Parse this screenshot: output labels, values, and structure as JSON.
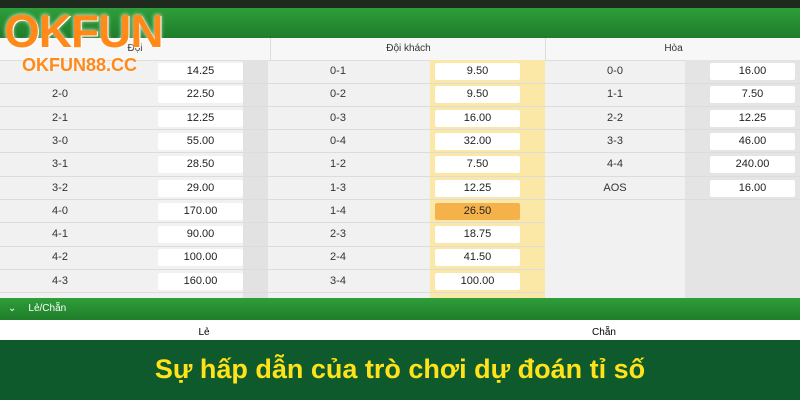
{
  "logo": {
    "brand": "OKFUN",
    "site": "OKFUN88.CC"
  },
  "table": {
    "columns": [
      {
        "title": "Đội",
        "rows": [
          {
            "score": null,
            "odds": "14.25"
          },
          {
            "score": "2-0",
            "odds": "22.50"
          },
          {
            "score": "2-1",
            "odds": "12.25"
          },
          {
            "score": "3-0",
            "odds": "55.00"
          },
          {
            "score": "3-1",
            "odds": "28.50"
          },
          {
            "score": "3-2",
            "odds": "29.00"
          },
          {
            "score": "4-0",
            "odds": "170.00"
          },
          {
            "score": "4-1",
            "odds": "90.00"
          },
          {
            "score": "4-2",
            "odds": "100.00"
          },
          {
            "score": "4-3",
            "odds": "160.00"
          }
        ]
      },
      {
        "title": "Đội khách",
        "rows": [
          {
            "score": "0-1",
            "odds": "9.50"
          },
          {
            "score": "0-2",
            "odds": "9.50"
          },
          {
            "score": "0-3",
            "odds": "16.00"
          },
          {
            "score": "0-4",
            "odds": "32.00"
          },
          {
            "score": "1-2",
            "odds": "7.50"
          },
          {
            "score": "1-3",
            "odds": "12.25"
          },
          {
            "score": "1-4",
            "odds": "26.50",
            "selected": true
          },
          {
            "score": "2-3",
            "odds": "18.75"
          },
          {
            "score": "2-4",
            "odds": "41.50"
          },
          {
            "score": "3-4",
            "odds": "100.00"
          }
        ]
      },
      {
        "title": "Hòa",
        "rows": [
          {
            "score": "0-0",
            "odds": "16.00"
          },
          {
            "score": "1-1",
            "odds": "7.50"
          },
          {
            "score": "2-2",
            "odds": "12.25"
          },
          {
            "score": "3-3",
            "odds": "46.00"
          },
          {
            "score": "4-4",
            "odds": "240.00"
          },
          {
            "score": "AOS",
            "odds": "16.00"
          }
        ]
      }
    ]
  },
  "section2": {
    "title": "Lẻ/Chẵn",
    "columns": [
      "Lẻ",
      "Chẵn"
    ]
  },
  "banner": "Sự hấp dẫn của trò chơi dự đoán tỉ số"
}
